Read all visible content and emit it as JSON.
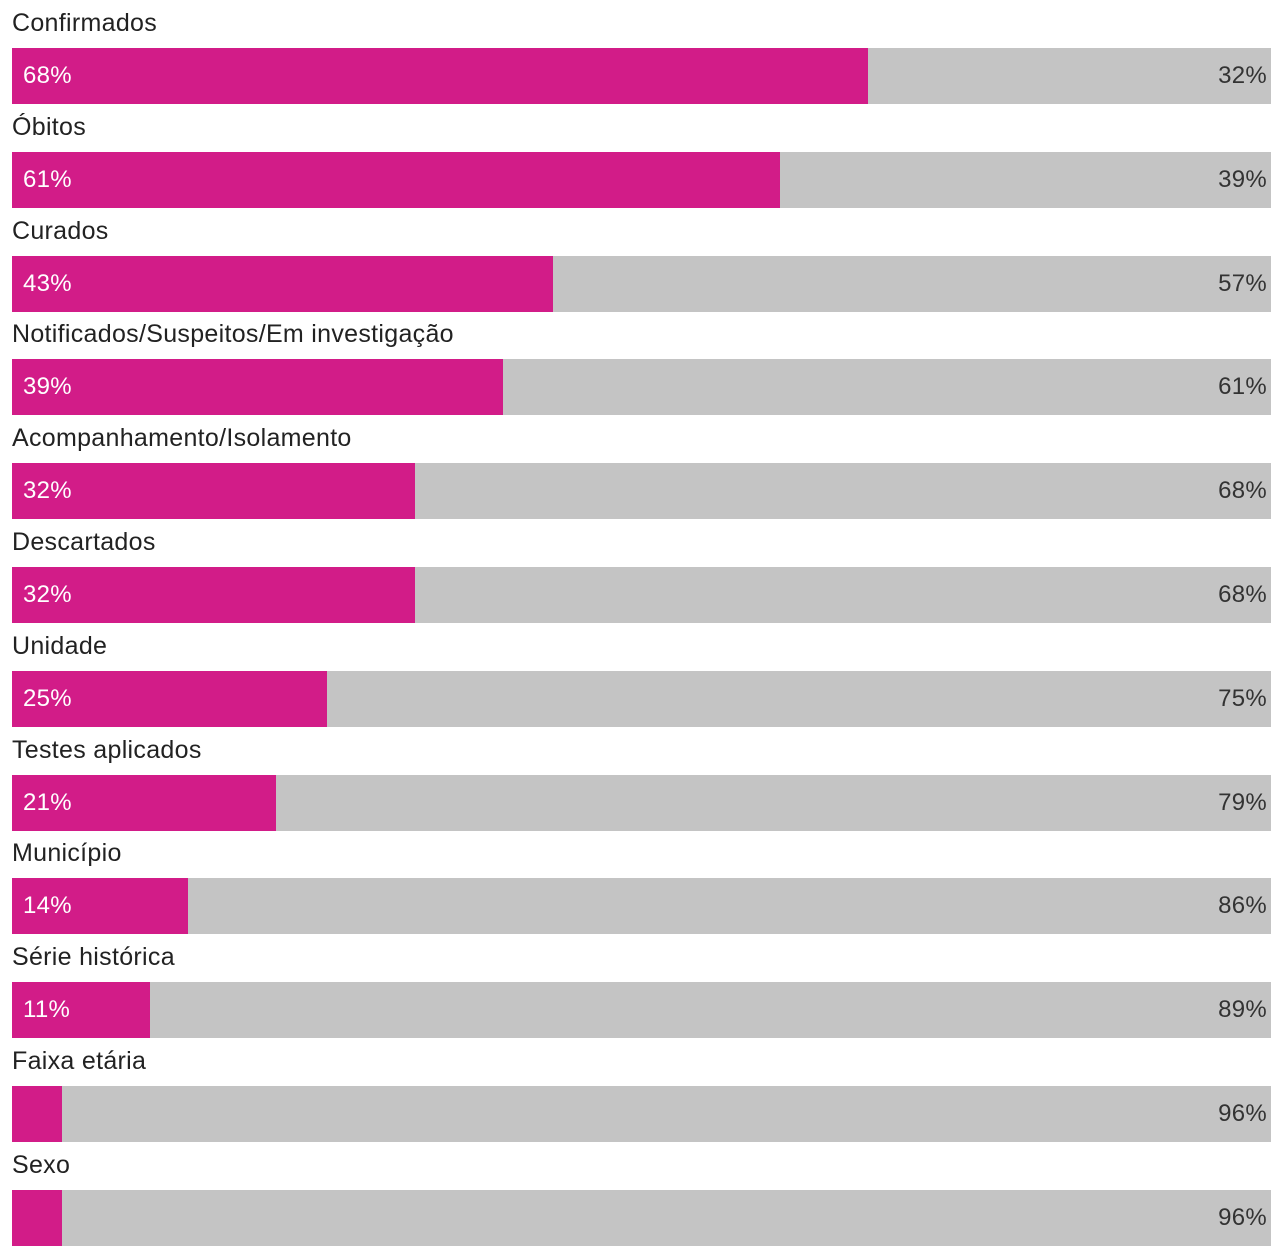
{
  "chart_data": {
    "type": "bar",
    "orientation": "horizontal",
    "stacked": true,
    "normalized_percent": true,
    "categories": [
      "Confirmados",
      "Óbitos",
      "Curados",
      "Notificados/Suspeitos/Em investigação",
      "Acompanhamento/Isolamento",
      "Descartados",
      "Unidade",
      "Testes aplicados",
      "Município",
      "Série histórica",
      "Faixa etária",
      "Sexo"
    ],
    "series": [
      {
        "color": "#d21c88",
        "values": [
          68,
          61,
          43,
          39,
          32,
          32,
          25,
          21,
          14,
          11,
          4,
          4
        ],
        "labels": [
          "68%",
          "61%",
          "43%",
          "39%",
          "32%",
          "32%",
          "25%",
          "21%",
          "14%",
          "11%",
          "",
          ""
        ]
      },
      {
        "color": "#c4c4c4",
        "values": [
          32,
          39,
          57,
          61,
          68,
          68,
          75,
          79,
          86,
          89,
          96,
          96
        ],
        "labels": [
          "32%",
          "39%",
          "57%",
          "61%",
          "68%",
          "68%",
          "75%",
          "79%",
          "86%",
          "89%",
          "96%",
          "96%"
        ]
      }
    ],
    "xlim": [
      0,
      100
    ],
    "grid": false,
    "legend": "none",
    "title": "",
    "xlabel": "",
    "ylabel": ""
  }
}
